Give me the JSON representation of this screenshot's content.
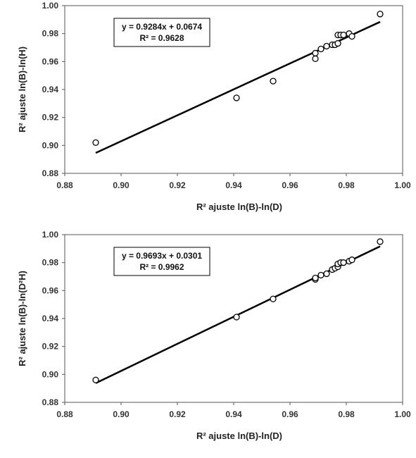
{
  "chart_data": [
    {
      "type": "scatter",
      "xlabel": "R² ajuste ln(B)-ln(D)",
      "ylabel": "R² ajuste ln(B)-ln(H)",
      "xlim": [
        0.88,
        1.0
      ],
      "ylim": [
        0.88,
        1.0
      ],
      "x_ticks": [
        "0.88",
        "0.90",
        "0.92",
        "0.94",
        "0.96",
        "0.98",
        "1.00"
      ],
      "y_ticks": [
        "0.88",
        "0.90",
        "0.92",
        "0.94",
        "0.96",
        "0.98",
        "1.00"
      ],
      "grid": false,
      "series": [
        {
          "marker": "open-circle",
          "points": [
            {
              "x": 0.891,
              "y": 0.902
            },
            {
              "x": 0.941,
              "y": 0.934
            },
            {
              "x": 0.954,
              "y": 0.946
            },
            {
              "x": 0.969,
              "y": 0.962
            },
            {
              "x": 0.969,
              "y": 0.966
            },
            {
              "x": 0.971,
              "y": 0.969
            },
            {
              "x": 0.973,
              "y": 0.971
            },
            {
              "x": 0.975,
              "y": 0.972
            },
            {
              "x": 0.976,
              "y": 0.972
            },
            {
              "x": 0.977,
              "y": 0.973
            },
            {
              "x": 0.977,
              "y": 0.979
            },
            {
              "x": 0.978,
              "y": 0.979
            },
            {
              "x": 0.979,
              "y": 0.979
            },
            {
              "x": 0.981,
              "y": 0.98
            },
            {
              "x": 0.982,
              "y": 0.978
            },
            {
              "x": 0.992,
              "y": 0.994
            }
          ]
        }
      ],
      "trendline": {
        "slope": 0.9284,
        "intercept": 0.0674,
        "x_range": [
          0.891,
          0.992
        ]
      },
      "annotation": {
        "equation": "y = 0.9284x + 0.0674",
        "r2": "R² = 0.9628"
      }
    },
    {
      "type": "scatter",
      "xlabel": "R² ajuste ln(B)-ln(D)",
      "ylabel": "R² ajuste ln(B)-ln(D²H)",
      "xlim": [
        0.88,
        1.0
      ],
      "ylim": [
        0.88,
        1.0
      ],
      "x_ticks": [
        "0.88",
        "0.90",
        "0.92",
        "0.94",
        "0.96",
        "0.98",
        "1.00"
      ],
      "y_ticks": [
        "0.88",
        "0.90",
        "0.92",
        "0.94",
        "0.96",
        "0.98",
        "1.00"
      ],
      "grid": false,
      "series": [
        {
          "marker": "open-circle",
          "points": [
            {
              "x": 0.891,
              "y": 0.896
            },
            {
              "x": 0.941,
              "y": 0.941
            },
            {
              "x": 0.954,
              "y": 0.954
            },
            {
              "x": 0.969,
              "y": 0.968
            },
            {
              "x": 0.969,
              "y": 0.969
            },
            {
              "x": 0.971,
              "y": 0.971
            },
            {
              "x": 0.973,
              "y": 0.972
            },
            {
              "x": 0.975,
              "y": 0.975
            },
            {
              "x": 0.976,
              "y": 0.976
            },
            {
              "x": 0.977,
              "y": 0.977
            },
            {
              "x": 0.977,
              "y": 0.979
            },
            {
              "x": 0.978,
              "y": 0.98
            },
            {
              "x": 0.979,
              "y": 0.98
            },
            {
              "x": 0.981,
              "y": 0.981
            },
            {
              "x": 0.982,
              "y": 0.982
            },
            {
              "x": 0.992,
              "y": 0.995
            }
          ]
        }
      ],
      "trendline": {
        "slope": 0.9693,
        "intercept": 0.0301,
        "x_range": [
          0.891,
          0.992
        ]
      },
      "annotation": {
        "equation": "y = 0.9693x + 0.0301",
        "r2": "R² = 0.9962"
      }
    }
  ]
}
